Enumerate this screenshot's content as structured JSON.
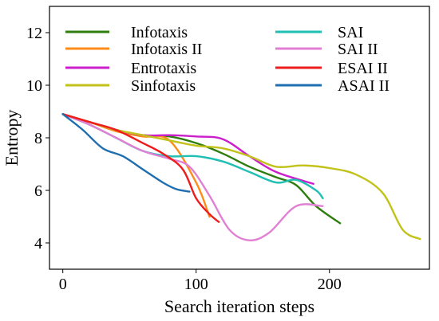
{
  "chart_data": {
    "type": "line",
    "xlabel": "Search iteration steps",
    "ylabel": "Entropy",
    "xlim": [
      -10,
      275
    ],
    "ylim": [
      3,
      13
    ],
    "xticks": [
      0,
      100,
      200
    ],
    "yticks": [
      4,
      6,
      8,
      10,
      12
    ],
    "grid": false,
    "legend_position": "top",
    "series": [
      {
        "name": "Infotaxis",
        "color": "#2e7d0e",
        "x": [
          0,
          20,
          40,
          60,
          80,
          100,
          120,
          140,
          160,
          175,
          190,
          208
        ],
        "y": [
          8.9,
          8.6,
          8.3,
          8.1,
          8.05,
          7.8,
          7.4,
          6.9,
          6.5,
          6.2,
          5.4,
          4.75
        ]
      },
      {
        "name": "Infotaxis II",
        "color": "#ff8c1a",
        "x": [
          0,
          20,
          40,
          60,
          80,
          100,
          110
        ],
        "y": [
          8.9,
          8.6,
          8.25,
          8.05,
          7.9,
          6.3,
          5.0
        ]
      },
      {
        "name": "Entrotaxis",
        "color": "#cc1fcc",
        "x": [
          0,
          20,
          40,
          60,
          80,
          100,
          120,
          140,
          160,
          188
        ],
        "y": [
          8.9,
          8.6,
          8.3,
          8.1,
          8.1,
          8.05,
          7.95,
          7.3,
          6.7,
          6.25
        ]
      },
      {
        "name": "Sinfotaxis",
        "color": "#c2c21a",
        "x": [
          0,
          20,
          40,
          60,
          80,
          100,
          120,
          140,
          160,
          180,
          200,
          220,
          240,
          255,
          268
        ],
        "y": [
          8.9,
          8.6,
          8.3,
          8.1,
          7.9,
          7.7,
          7.6,
          7.3,
          6.9,
          6.95,
          6.85,
          6.6,
          5.9,
          4.5,
          4.15
        ]
      },
      {
        "name": "SAI",
        "color": "#1fbfb3",
        "x": [
          0,
          20,
          40,
          60,
          80,
          100,
          120,
          140,
          160,
          175,
          190,
          195
        ],
        "y": [
          8.9,
          8.5,
          8.0,
          7.5,
          7.3,
          7.3,
          7.1,
          6.7,
          6.3,
          6.4,
          6.0,
          5.7
        ]
      },
      {
        "name": "SAI II",
        "color": "#e07fd3",
        "x": [
          0,
          20,
          40,
          60,
          80,
          95,
          110,
          125,
          140,
          155,
          175,
          195
        ],
        "y": [
          8.9,
          8.5,
          8.0,
          7.5,
          7.2,
          6.9,
          5.8,
          4.5,
          4.1,
          4.4,
          5.4,
          5.4
        ]
      },
      {
        "name": "ESAI II",
        "color": "#ee1c1c",
        "x": [
          0,
          20,
          40,
          60,
          75,
          90,
          100,
          110,
          117
        ],
        "y": [
          8.9,
          8.6,
          8.3,
          7.8,
          7.4,
          6.8,
          5.7,
          5.1,
          4.8
        ]
      },
      {
        "name": "ASAI II",
        "color": "#1f6fb0",
        "x": [
          0,
          15,
          30,
          45,
          60,
          75,
          85,
          95
        ],
        "y": [
          8.9,
          8.3,
          7.6,
          7.3,
          6.8,
          6.3,
          6.05,
          5.95
        ]
      }
    ]
  }
}
